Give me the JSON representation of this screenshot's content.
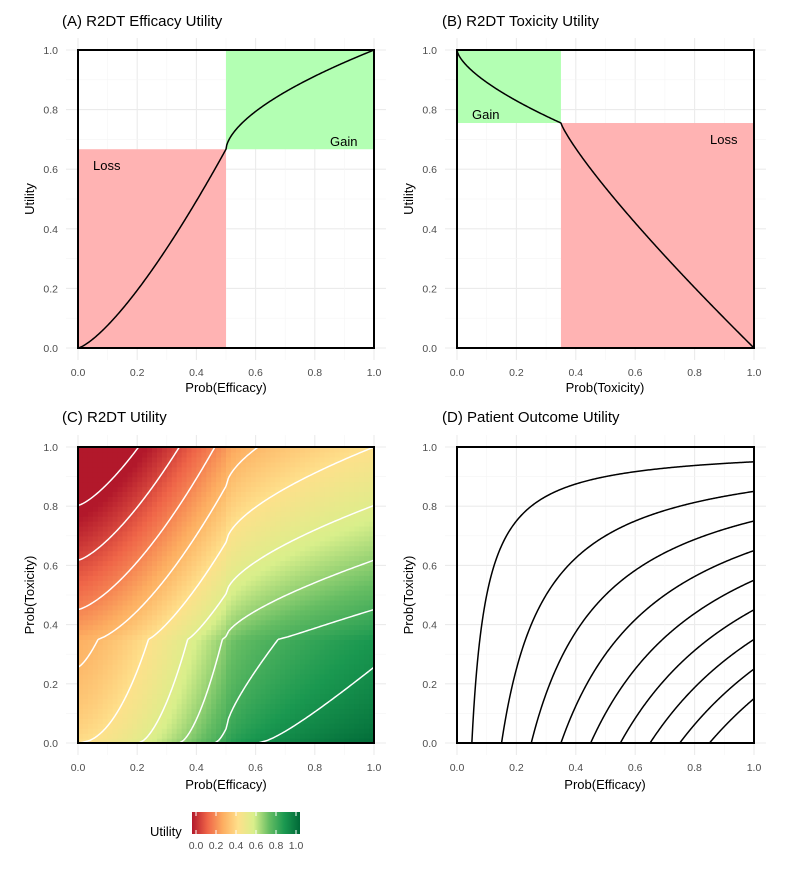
{
  "chart_data": [
    {
      "id": "A",
      "type": "line",
      "title": "(A) R2DT Efficacy Utility",
      "xlabel": "Prob(Efficacy)",
      "ylabel": "Utility",
      "xlim": [
        0,
        1
      ],
      "ylim": [
        0,
        1
      ],
      "xticks": [
        "0.0",
        "0.2",
        "0.4",
        "0.6",
        "0.8",
        "1.0"
      ],
      "yticks": [
        "0.0",
        "0.2",
        "0.4",
        "0.6",
        "0.8",
        "1.0"
      ],
      "regions": [
        {
          "name": "Loss",
          "x": [
            0,
            0.5
          ],
          "y": [
            0,
            0.667
          ],
          "color": "#ffb3b3"
        },
        {
          "name": "Gain",
          "x": [
            0.5,
            1
          ],
          "y": [
            0.667,
            1
          ],
          "color": "#b3ffb3"
        }
      ],
      "threshold": 0.5,
      "utility_at_threshold": 0.667,
      "curve_shape": {
        "loss_exponent": 1.35,
        "gain_exponent": 0.6
      },
      "grid": true
    },
    {
      "id": "B",
      "type": "line",
      "title": "(B) R2DT Toxicity Utility",
      "xlabel": "Prob(Toxicity)",
      "ylabel": "Utility",
      "xlim": [
        0,
        1
      ],
      "ylim": [
        0,
        1
      ],
      "xticks": [
        "0.0",
        "0.2",
        "0.4",
        "0.6",
        "0.8",
        "1.0"
      ],
      "yticks": [
        "0.0",
        "0.2",
        "0.4",
        "0.6",
        "0.8",
        "1.0"
      ],
      "regions": [
        {
          "name": "Gain",
          "x": [
            0,
            0.35
          ],
          "y": [
            0.755,
            1
          ],
          "color": "#b3ffb3"
        },
        {
          "name": "Loss",
          "x": [
            0.35,
            1
          ],
          "y": [
            0,
            0.755
          ],
          "color": "#ffb3b3"
        }
      ],
      "threshold": 0.35,
      "utility_at_threshold": 0.755,
      "curve_shape": {
        "gain_exponent": 0.65,
        "loss_exponent": 0.85
      },
      "grid": true
    },
    {
      "id": "C",
      "type": "heatmap",
      "title": "(C) R2DT Utility",
      "xlabel": "Prob(Efficacy)",
      "ylabel": "Prob(Toxicity)",
      "xlim": [
        0,
        1
      ],
      "ylim": [
        0,
        1
      ],
      "xticks": [
        "0.0",
        "0.2",
        "0.4",
        "0.6",
        "0.8",
        "1.0"
      ],
      "yticks": [
        "0.0",
        "0.2",
        "0.4",
        "0.6",
        "0.8",
        "1.0"
      ],
      "formula": "utility = (efficacy_utility(p_eff) + toxicity_utility(p_tox)) / 2",
      "contour_levels": [
        0.1,
        0.2,
        0.3,
        0.4,
        0.5,
        0.6,
        0.7,
        0.8,
        0.9
      ],
      "contour_color": "#ffffff",
      "colorscale": [
        "#b2182b",
        "#ef6548",
        "#fdae61",
        "#fee08b",
        "#d9ef8b",
        "#66bd63",
        "#1a9850",
        "#006837"
      ],
      "legend": {
        "title": "Utility",
        "ticks": [
          "0.0",
          "0.2",
          "0.4",
          "0.6",
          "0.8",
          "1.0"
        ],
        "position": "bottom"
      }
    },
    {
      "id": "D",
      "type": "line",
      "title": "(D) Patient Outcome Utility",
      "xlabel": "Prob(Efficacy)",
      "ylabel": "Prob(Toxicity)",
      "xlim": [
        0,
        1
      ],
      "ylim": [
        0,
        1
      ],
      "xticks": [
        "0.0",
        "0.2",
        "0.4",
        "0.6",
        "0.8",
        "1.0"
      ],
      "yticks": [
        "0.0",
        "0.2",
        "0.4",
        "0.6",
        "0.8",
        "1.0"
      ],
      "formula": "contours of p_eff * (1 - p_tox)",
      "contour_levels": [
        0.05,
        0.15,
        0.25,
        0.35,
        0.45,
        0.55,
        0.65,
        0.75,
        0.85
      ],
      "grid": true
    }
  ]
}
